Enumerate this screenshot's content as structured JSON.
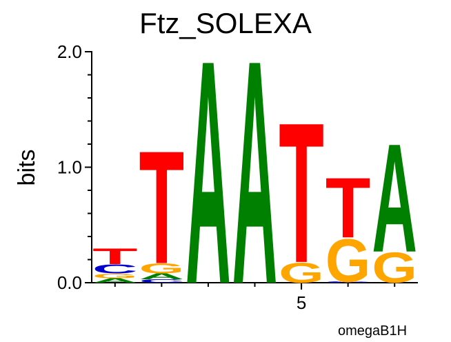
{
  "chart_data": {
    "type": "logo",
    "title": "Ftz_SOLEXA",
    "subtitle": "omegaB1H",
    "y_label": "bits",
    "colors": {
      "A": "#008000",
      "C": "#0000cc",
      "G": "#ffa500",
      "T": "#ff0000"
    },
    "positions": [
      1,
      2,
      3,
      4,
      5,
      6,
      7
    ],
    "columns": [
      {
        "letters": [
          "A",
          "G",
          "C",
          "T"
        ],
        "values": [
          0.04,
          0.04,
          0.08,
          0.14
        ]
      },
      {
        "letters": [
          "C",
          "A",
          "G",
          "T"
        ],
        "values": [
          0.03,
          0.05,
          0.09,
          1.0
        ]
      },
      {
        "letters": [
          "A"
        ],
        "values": [
          1.98
        ]
      },
      {
        "letters": [
          "A"
        ],
        "values": [
          1.98
        ]
      },
      {
        "letters": [
          "G",
          "T"
        ],
        "values": [
          0.18,
          1.24
        ]
      },
      {
        "letters": [
          "C",
          "G",
          "T"
        ],
        "values": [
          0.01,
          0.38,
          0.53
        ]
      },
      {
        "letters": [
          "G",
          "A"
        ],
        "values": [
          0.27,
          0.96
        ]
      }
    ],
    "xlim": [
      0.5,
      7.5
    ],
    "xticks": [
      5
    ],
    "ylim": [
      0,
      2
    ],
    "yticks": [
      {
        "value": 0,
        "label": "0.0"
      },
      {
        "value": 1,
        "label": "1.0"
      },
      {
        "value": 2,
        "label": "2.0"
      }
    ],
    "yminorticks": [
      0.2,
      0.4,
      0.6,
      0.8,
      1.2,
      1.4,
      1.6,
      1.8
    ]
  }
}
